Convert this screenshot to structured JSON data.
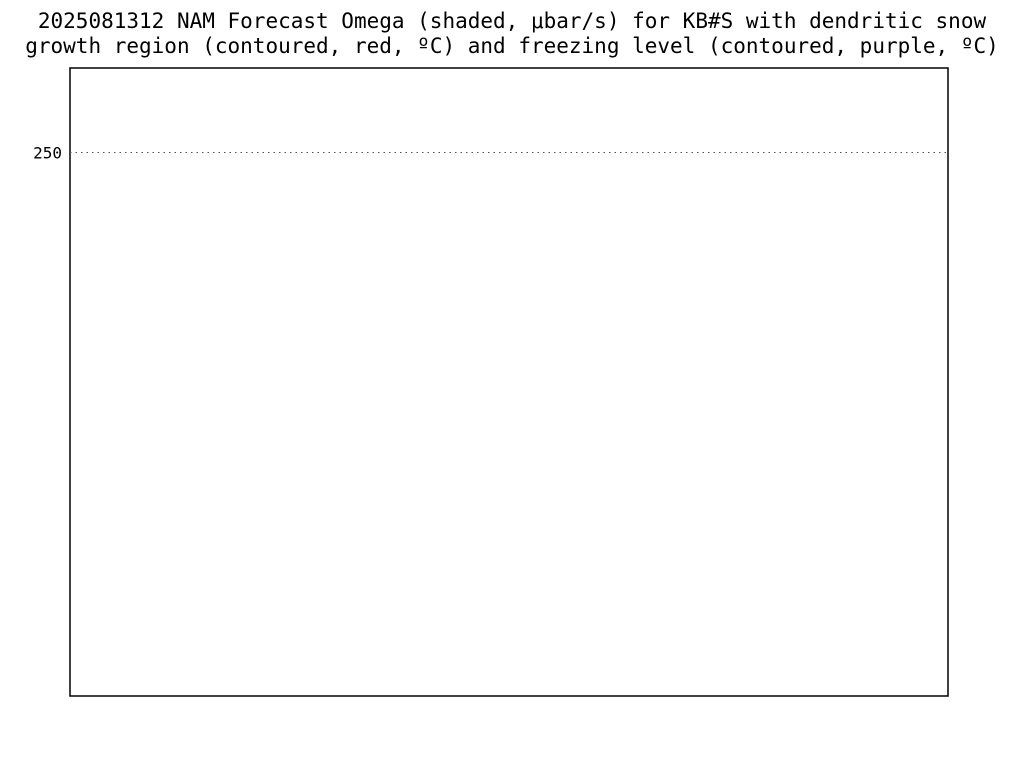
{
  "title": {
    "line1": "2025081312 NAM Forecast Omega (shaded, μbar/s) for KB#S with dendritic snow",
    "line2": "growth region (contoured, red, ºC) and freezing level (contoured, purple, ºC)"
  },
  "chart_data": {
    "type": "heatmap",
    "ylim": [
      1050,
      200
    ],
    "y_ticks": [
      250
    ]
  }
}
